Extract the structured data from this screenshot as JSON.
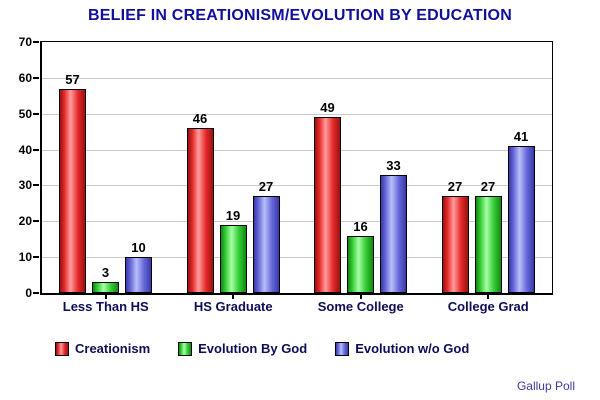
{
  "chart_data": {
    "type": "bar",
    "title": "BELIEF IN CREATIONISM/EVOLUTION BY EDUCATION",
    "categories": [
      "Less Than HS",
      "HS Graduate",
      "Some College",
      "College Grad"
    ],
    "series": [
      {
        "name": "Creationism",
        "values": [
          57,
          46,
          49,
          27
        ],
        "color": "#e62929",
        "color_light": "#ff9d9d",
        "color_dark": "#991111"
      },
      {
        "name": "Evolution By God",
        "values": [
          3,
          19,
          16,
          27
        ],
        "color": "#33cc33",
        "color_light": "#a6ffa6",
        "color_dark": "#118811"
      },
      {
        "name": "Evolution w/o God",
        "values": [
          10,
          27,
          33,
          41
        ],
        "color": "#6666d9",
        "color_light": "#b8c0f8",
        "color_dark": "#3939a8"
      }
    ],
    "xlabel": "",
    "ylabel": "",
    "ylim": [
      0,
      70
    ],
    "yticks": [
      0,
      10,
      20,
      30,
      40,
      50,
      60,
      70
    ],
    "grid": true,
    "legend_position": "bottom",
    "annotation": "Gallup Poll"
  },
  "colors": {
    "title_text": "#10109a",
    "category_text": "#0d0d55",
    "legend_text": "#0d0d55",
    "value_text": "#000000",
    "axis_text": "#000000",
    "source_text": "#3a3aa0",
    "gridline": "#c9c9c9",
    "plot_border": "#000000",
    "background": "#ffffff"
  }
}
